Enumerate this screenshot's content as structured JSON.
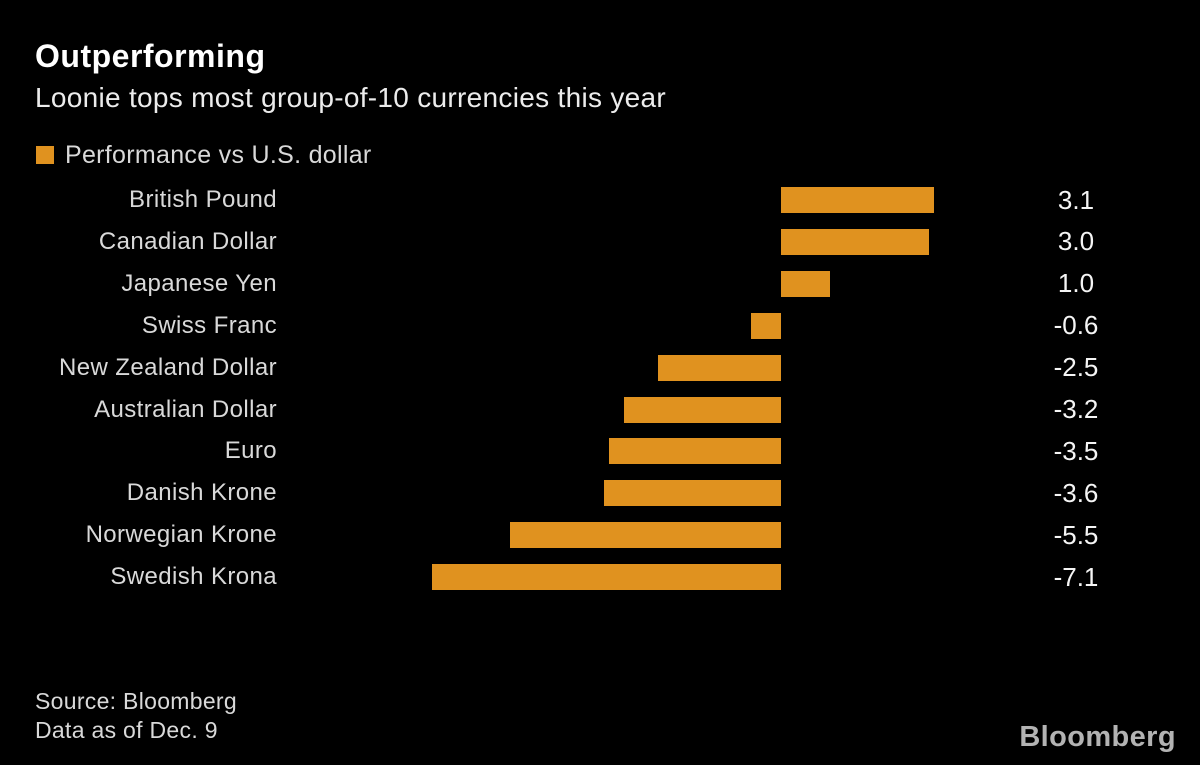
{
  "colors": {
    "background": "#000000",
    "bar": "#e0921f",
    "title_text": "#ffffff",
    "label_text": "#d9d9d9",
    "value_text": "#f5f5f5",
    "logo_text": "#b3b3b3"
  },
  "chart_data": {
    "type": "bar",
    "orientation": "horizontal",
    "title": "Outperforming",
    "subtitle": "Loonie tops most group-of-10 currencies this year",
    "legend": "Performance vs U.S. dollar",
    "legend_position": "top-left",
    "categories": [
      "British Pound",
      "Canadian Dollar",
      "Japanese Yen",
      "Swiss Franc",
      "New Zealand Dollar",
      "Australian Dollar",
      "Euro",
      "Danish Krone",
      "Norwegian Krone",
      "Swedish Krona"
    ],
    "values": [
      3.1,
      3.0,
      1.0,
      -0.6,
      -2.5,
      -3.2,
      -3.5,
      -3.6,
      -5.5,
      -7.1
    ],
    "value_labels": [
      "3.1",
      "3.0",
      "1.0",
      "-0.6",
      "-2.5",
      "-3.2",
      "-3.5",
      "-3.6",
      "-5.5",
      "-7.1"
    ],
    "baseline": 0,
    "xlim": [
      -7.5,
      3.5
    ],
    "grid": false,
    "value_label_position": "right",
    "xlabel": "",
    "ylabel": ""
  },
  "footer": {
    "source": "Source: Bloomberg",
    "data_as_of": "Data as of Dec. 9"
  },
  "brand": {
    "logo_text": "Bloomberg"
  }
}
